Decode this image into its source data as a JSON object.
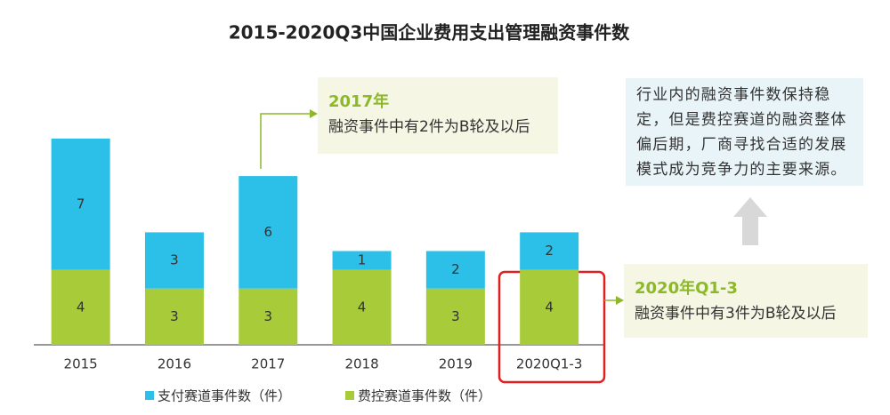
{
  "chart_data": {
    "type": "stacked-bar",
    "title": "2015-2020Q3中国企业费用支出管理融资事件数",
    "categories": [
      "2015",
      "2016",
      "2017",
      "2018",
      "2019",
      "2020Q1-3"
    ],
    "series": [
      {
        "name": "费控赛道事件数（件）",
        "color": "#a8cb3a",
        "values": [
          4,
          3,
          3,
          4,
          3,
          4
        ]
      },
      {
        "name": "支付赛道事件数（件）",
        "color": "#2cc0e8",
        "values": [
          7,
          3,
          6,
          1,
          2,
          2
        ]
      }
    ],
    "legend_order": [
      1,
      0
    ],
    "annotations": [
      {
        "title": "2017年",
        "text": "融资事件中有2件为B轮及以后"
      },
      {
        "text": "行业内的融资事件数保持稳定，但是费控赛道的融资整体偏后期，厂商寻找合适的发展模式成为竞争力的主要来源。"
      },
      {
        "title": "2020年Q1-3",
        "text": "融资事件中有3件为B轮及以后"
      }
    ]
  }
}
